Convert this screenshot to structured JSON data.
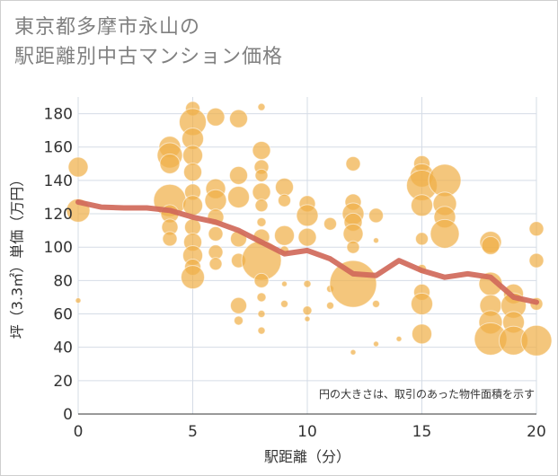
{
  "title_line1": "東京都多摩市永山の",
  "title_line2": "駅距離別中古マンション価格",
  "chart_data": {
    "type": "scatter",
    "xlabel": "駅距離（分）",
    "ylabel": "坪（3.3㎡）単価（万円）",
    "note": "円の大きさは、取引のあった物件面積を示す",
    "xlim": [
      0,
      20
    ],
    "ylim": [
      0,
      190
    ],
    "xticks": [
      0,
      5,
      10,
      15,
      20
    ],
    "yticks": [
      0,
      20,
      40,
      60,
      80,
      100,
      120,
      140,
      160,
      180
    ],
    "grid": true,
    "colors": {
      "bubble": "#f0b04a",
      "line": "#d0695a",
      "grid": "#d5dce6"
    },
    "trend_line": {
      "x": [
        0,
        1,
        2,
        3,
        4,
        5,
        6,
        7,
        8,
        9,
        10,
        11,
        12,
        13,
        14,
        15,
        16,
        17,
        18,
        19,
        20
      ],
      "y": [
        127,
        124,
        123.5,
        123.5,
        122,
        118,
        115,
        110,
        103,
        96,
        98,
        93,
        84,
        83,
        92,
        86,
        82,
        84,
        82,
        70,
        67
      ]
    },
    "bubbles": [
      {
        "x": 0,
        "y": 148,
        "s": 11
      },
      {
        "x": 0,
        "y": 122,
        "s": 13
      },
      {
        "x": 0,
        "y": 68,
        "s": 3
      },
      {
        "x": 4,
        "y": 160,
        "s": 12
      },
      {
        "x": 4,
        "y": 155,
        "s": 14
      },
      {
        "x": 4,
        "y": 150,
        "s": 11
      },
      {
        "x": 4,
        "y": 128,
        "s": 18
      },
      {
        "x": 4,
        "y": 120,
        "s": 10
      },
      {
        "x": 4,
        "y": 112,
        "s": 9
      },
      {
        "x": 4,
        "y": 105,
        "s": 8
      },
      {
        "x": 5,
        "y": 183,
        "s": 8
      },
      {
        "x": 5,
        "y": 175,
        "s": 15
      },
      {
        "x": 5,
        "y": 165,
        "s": 12
      },
      {
        "x": 5,
        "y": 155,
        "s": 11
      },
      {
        "x": 5,
        "y": 145,
        "s": 10
      },
      {
        "x": 5,
        "y": 133,
        "s": 9
      },
      {
        "x": 5,
        "y": 125,
        "s": 11
      },
      {
        "x": 5,
        "y": 112,
        "s": 9
      },
      {
        "x": 5,
        "y": 103,
        "s": 10
      },
      {
        "x": 5,
        "y": 95,
        "s": 11
      },
      {
        "x": 5,
        "y": 88,
        "s": 9
      },
      {
        "x": 5,
        "y": 82,
        "s": 13
      },
      {
        "x": 6,
        "y": 178,
        "s": 10
      },
      {
        "x": 6,
        "y": 135,
        "s": 11
      },
      {
        "x": 6,
        "y": 128,
        "s": 12
      },
      {
        "x": 6,
        "y": 118,
        "s": 9
      },
      {
        "x": 6,
        "y": 108,
        "s": 8
      },
      {
        "x": 6,
        "y": 97,
        "s": 8
      },
      {
        "x": 6,
        "y": 90,
        "s": 7
      },
      {
        "x": 7,
        "y": 177,
        "s": 10
      },
      {
        "x": 7,
        "y": 143,
        "s": 10
      },
      {
        "x": 7,
        "y": 130,
        "s": 12
      },
      {
        "x": 7,
        "y": 105,
        "s": 9
      },
      {
        "x": 7,
        "y": 92,
        "s": 8
      },
      {
        "x": 7,
        "y": 65,
        "s": 9
      },
      {
        "x": 7,
        "y": 56,
        "s": 5
      },
      {
        "x": 8,
        "y": 184,
        "s": 4
      },
      {
        "x": 8,
        "y": 158,
        "s": 10
      },
      {
        "x": 8,
        "y": 148,
        "s": 8
      },
      {
        "x": 8,
        "y": 143,
        "s": 7
      },
      {
        "x": 8,
        "y": 133,
        "s": 10
      },
      {
        "x": 8,
        "y": 125,
        "s": 7
      },
      {
        "x": 8,
        "y": 115,
        "s": 5
      },
      {
        "x": 8,
        "y": 106,
        "s": 9
      },
      {
        "x": 8,
        "y": 92,
        "s": 22
      },
      {
        "x": 8,
        "y": 80,
        "s": 8
      },
      {
        "x": 8,
        "y": 70,
        "s": 5
      },
      {
        "x": 8,
        "y": 60,
        "s": 4
      },
      {
        "x": 8,
        "y": 50,
        "s": 4
      },
      {
        "x": 9,
        "y": 136,
        "s": 10
      },
      {
        "x": 9,
        "y": 128,
        "s": 7
      },
      {
        "x": 9,
        "y": 107,
        "s": 11
      },
      {
        "x": 9,
        "y": 98,
        "s": 5
      },
      {
        "x": 9,
        "y": 78,
        "s": 3
      },
      {
        "x": 9,
        "y": 66,
        "s": 4
      },
      {
        "x": 10,
        "y": 126,
        "s": 9
      },
      {
        "x": 10,
        "y": 119,
        "s": 12
      },
      {
        "x": 10,
        "y": 106,
        "s": 10
      },
      {
        "x": 10,
        "y": 78,
        "s": 4
      },
      {
        "x": 10,
        "y": 62,
        "s": 5
      },
      {
        "x": 10,
        "y": 57,
        "s": 3
      },
      {
        "x": 11,
        "y": 114,
        "s": 7
      },
      {
        "x": 11,
        "y": 75,
        "s": 4
      },
      {
        "x": 11,
        "y": 65,
        "s": 4
      },
      {
        "x": 12,
        "y": 150,
        "s": 8
      },
      {
        "x": 12,
        "y": 127,
        "s": 9
      },
      {
        "x": 12,
        "y": 120,
        "s": 12
      },
      {
        "x": 12,
        "y": 115,
        "s": 10
      },
      {
        "x": 12,
        "y": 108,
        "s": 11
      },
      {
        "x": 12,
        "y": 100,
        "s": 7
      },
      {
        "x": 12,
        "y": 78,
        "s": 26
      },
      {
        "x": 12,
        "y": 37,
        "s": 3
      },
      {
        "x": 13,
        "y": 119,
        "s": 8
      },
      {
        "x": 13,
        "y": 104,
        "s": 3
      },
      {
        "x": 13,
        "y": 66,
        "s": 4
      },
      {
        "x": 13,
        "y": 42,
        "s": 3
      },
      {
        "x": 14,
        "y": 45,
        "s": 3
      },
      {
        "x": 15,
        "y": 150,
        "s": 9
      },
      {
        "x": 15,
        "y": 143,
        "s": 13
      },
      {
        "x": 15,
        "y": 137,
        "s": 17
      },
      {
        "x": 15,
        "y": 125,
        "s": 12
      },
      {
        "x": 15,
        "y": 105,
        "s": 7
      },
      {
        "x": 15,
        "y": 87,
        "s": 5
      },
      {
        "x": 15,
        "y": 73,
        "s": 9
      },
      {
        "x": 15,
        "y": 66,
        "s": 12
      },
      {
        "x": 15,
        "y": 48,
        "s": 11
      },
      {
        "x": 16,
        "y": 140,
        "s": 18
      },
      {
        "x": 16,
        "y": 126,
        "s": 13
      },
      {
        "x": 16,
        "y": 118,
        "s": 12
      },
      {
        "x": 16,
        "y": 108,
        "s": 16
      },
      {
        "x": 18,
        "y": 103,
        "s": 12
      },
      {
        "x": 18,
        "y": 101,
        "s": 10
      },
      {
        "x": 18,
        "y": 78,
        "s": 13
      },
      {
        "x": 18,
        "y": 65,
        "s": 12
      },
      {
        "x": 18,
        "y": 55,
        "s": 13
      },
      {
        "x": 18,
        "y": 45,
        "s": 18
      },
      {
        "x": 19,
        "y": 72,
        "s": 11
      },
      {
        "x": 19,
        "y": 65,
        "s": 14
      },
      {
        "x": 19,
        "y": 55,
        "s": 12
      },
      {
        "x": 19,
        "y": 44,
        "s": 16
      },
      {
        "x": 20,
        "y": 111,
        "s": 8
      },
      {
        "x": 20,
        "y": 92,
        "s": 8
      },
      {
        "x": 20,
        "y": 66,
        "s": 7
      },
      {
        "x": 20,
        "y": 44,
        "s": 17
      }
    ]
  }
}
